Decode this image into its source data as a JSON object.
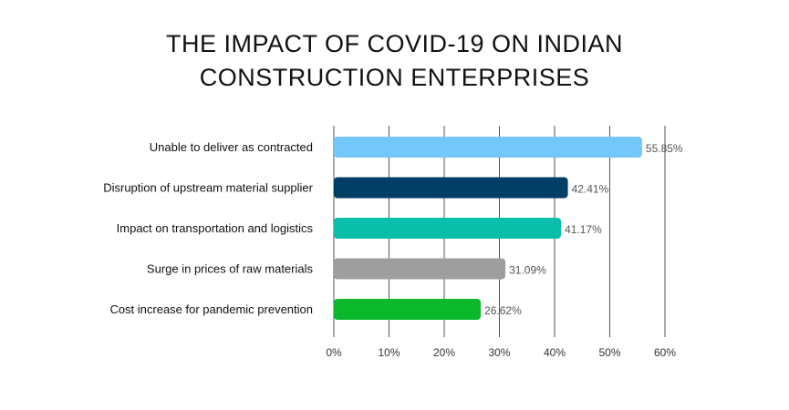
{
  "chart_data": {
    "type": "bar",
    "orientation": "horizontal",
    "title_lines": [
      "THE IMPACT OF COVID-19 ON INDIAN",
      "CONSTRUCTION ENTERPRISES"
    ],
    "categories": [
      "Unable to deliver as contracted",
      "Disruption of upstream material supplier",
      "Impact on transportation and logistics",
      "Surge in prices of raw materials",
      "Cost increase for pandemic prevention"
    ],
    "values": [
      55.85,
      42.41,
      41.17,
      31.09,
      26.62
    ],
    "value_labels": [
      "55.85%",
      "42.41%",
      "41.17%",
      "31.09%",
      "26.62%"
    ],
    "bar_colors": [
      "#74c7fb",
      "#023f66",
      "#0abfa9",
      "#9e9e9e",
      "#0bb82c"
    ],
    "xlim": [
      0,
      60
    ],
    "x_ticks": [
      "0%",
      "10%",
      "20%",
      "30%",
      "40%",
      "50%",
      "60%"
    ],
    "grid": "vertical"
  }
}
